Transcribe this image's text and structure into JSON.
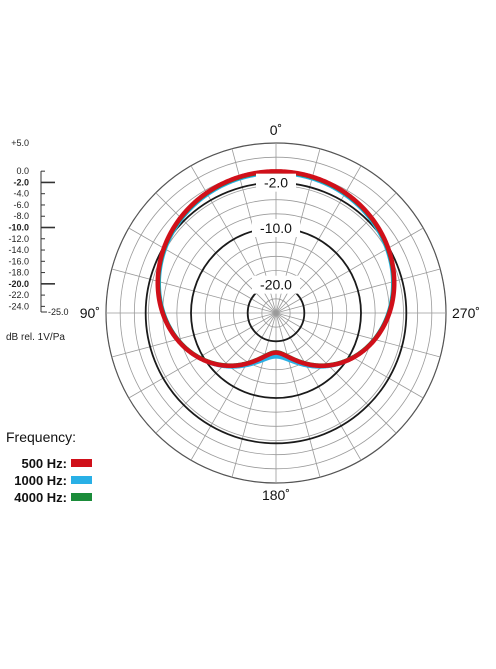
{
  "chart_data": {
    "type": "polar",
    "angle_labels": [
      {
        "angle": 0,
        "text": "0˚"
      },
      {
        "angle": 90,
        "text": "90˚"
      },
      {
        "angle": 180,
        "text": "180˚"
      },
      {
        "angle": 270,
        "text": "270˚"
      }
    ],
    "radial_range_db": [
      -25,
      5
    ],
    "ring_labels": [
      {
        "db": -2.0,
        "text": "-2.0"
      },
      {
        "db": -10.0,
        "text": "-10.0"
      },
      {
        "db": -20.0,
        "text": "-20.0"
      }
    ],
    "scale": {
      "ticks": [
        {
          "db": 5.0,
          "text": "+5.0",
          "major": false
        },
        {
          "db": 0.0,
          "text": "0.0",
          "major": false
        },
        {
          "db": -2.0,
          "text": "-2.0",
          "major": true
        },
        {
          "db": -4.0,
          "text": "-4.0",
          "major": false
        },
        {
          "db": -6.0,
          "text": "-6.0",
          "major": false
        },
        {
          "db": -8.0,
          "text": "-8.0",
          "major": false
        },
        {
          "db": -10.0,
          "text": "-10.0",
          "major": true
        },
        {
          "db": -12.0,
          "text": "-12.0",
          "major": false
        },
        {
          "db": -14.0,
          "text": "-14.0",
          "major": false
        },
        {
          "db": -16.0,
          "text": "-16.0",
          "major": false
        },
        {
          "db": -18.0,
          "text": "-18.0",
          "major": false
        },
        {
          "db": -20.0,
          "text": "-20.0",
          "major": true
        },
        {
          "db": -22.0,
          "text": "-22.0",
          "major": false
        },
        {
          "db": -24.0,
          "text": "-24.0",
          "major": false
        },
        {
          "db": -25.0,
          "text": "-25.0",
          "major": false
        }
      ],
      "unit": "dB rel. 1V/Pa"
    },
    "legend_title": "Frequency:",
    "series": [
      {
        "name": "500 Hz:",
        "color": "#d0101a",
        "pattern": "cardioid",
        "offset_db": 0.0,
        "rear_db": -18
      },
      {
        "name": "1000 Hz:",
        "color": "#29b0e6",
        "pattern": "cardioid",
        "offset_db": -0.3,
        "rear_db": -17
      },
      {
        "name": "4000 Hz:",
        "color": "#1b8c3a",
        "pattern": "cardioid",
        "offset_db": -0.1,
        "rear_db": -18
      }
    ]
  }
}
